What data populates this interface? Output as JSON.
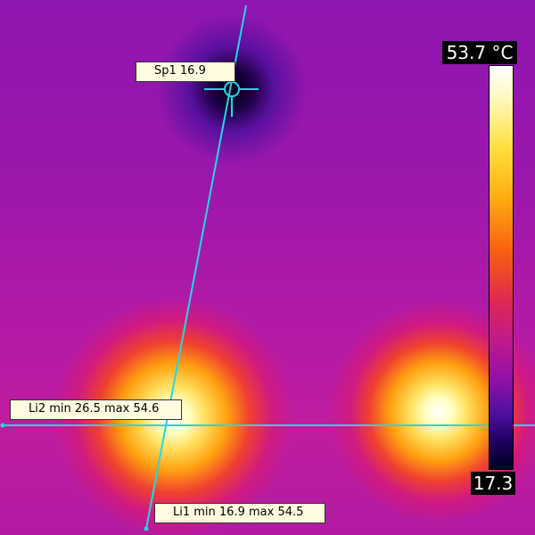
{
  "measurements": {
    "spot": {
      "label": "Sp1 16.9"
    },
    "line2": {
      "label": "Li2 min 26.5 max 54.6"
    },
    "line1": {
      "label": "Li1 min 16.9 max 54.5"
    }
  },
  "scale": {
    "max": "53.7 °C",
    "min": "17.3"
  },
  "colors": {
    "overlay_line": "#20d8e8",
    "label_bg": "#fffbe0"
  }
}
